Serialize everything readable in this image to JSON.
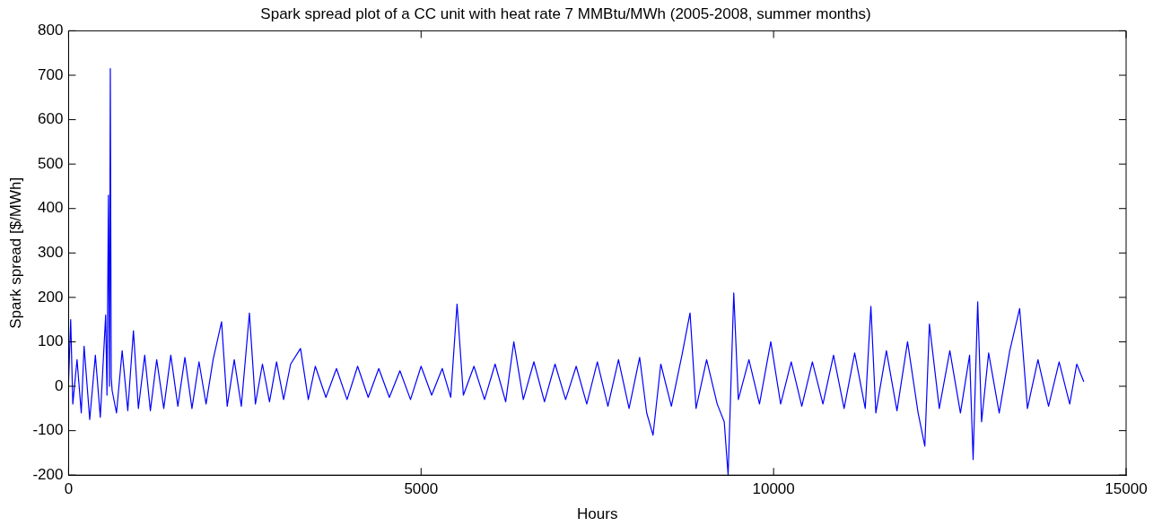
{
  "chart_data": {
    "type": "line",
    "title": "Spark spread plot of a CC unit with heat rate 7 MMBtu/MWh (2005-2008, summer months)",
    "xlabel": "Hours",
    "ylabel": "Spark spread [$/MWh]",
    "x": [
      0,
      30,
      60,
      120,
      180,
      220,
      300,
      380,
      450,
      526,
      545,
      565,
      580,
      592,
      605,
      618,
      680,
      760,
      840,
      920,
      990,
      1080,
      1160,
      1250,
      1350,
      1450,
      1550,
      1650,
      1750,
      1850,
      1950,
      2050,
      2170,
      2250,
      2350,
      2450,
      2565,
      2650,
      2750,
      2850,
      2950,
      3050,
      3150,
      3290,
      3400,
      3500,
      3650,
      3800,
      3950,
      4100,
      4250,
      4400,
      4550,
      4700,
      4850,
      5000,
      5150,
      5300,
      5420,
      5510,
      5600,
      5750,
      5900,
      6050,
      6200,
      6315,
      6450,
      6600,
      6750,
      6900,
      7050,
      7200,
      7350,
      7500,
      7650,
      7800,
      7950,
      8100,
      8200,
      8290,
      8400,
      8550,
      8700,
      8815,
      8900,
      9050,
      9200,
      9300,
      9355,
      9435,
      9500,
      9650,
      9800,
      9960,
      10100,
      10250,
      10400,
      10550,
      10700,
      10850,
      11000,
      11150,
      11300,
      11380,
      11450,
      11600,
      11750,
      11900,
      12050,
      12145,
      12210,
      12350,
      12500,
      12650,
      12780,
      12830,
      12895,
      12950,
      13050,
      13200,
      13350,
      13490,
      13600,
      13750,
      13900,
      14050,
      14200,
      14300,
      14400
    ],
    "series": [
      {
        "color": "#0000ff",
        "values": [
          10,
          150,
          -40,
          60,
          -60,
          90,
          -75,
          70,
          -70,
          160,
          -20,
          430,
          0,
          715,
          20,
          -10,
          -60,
          80,
          -55,
          125,
          -50,
          70,
          -55,
          60,
          -50,
          70,
          -45,
          65,
          -50,
          55,
          -40,
          60,
          145,
          -45,
          60,
          -45,
          165,
          -40,
          50,
          -35,
          55,
          -30,
          50,
          85,
          -30,
          45,
          -25,
          40,
          -30,
          45,
          -25,
          40,
          -25,
          35,
          -30,
          45,
          -20,
          40,
          -25,
          185,
          -20,
          45,
          -30,
          50,
          -35,
          100,
          -30,
          55,
          -35,
          50,
          -30,
          45,
          -40,
          55,
          -45,
          60,
          -50,
          65,
          -60,
          -110,
          50,
          -45,
          70,
          165,
          -50,
          60,
          -40,
          -80,
          -200,
          210,
          -30,
          60,
          -40,
          100,
          -40,
          55,
          -45,
          55,
          -40,
          70,
          -50,
          75,
          -50,
          180,
          -60,
          80,
          -55,
          100,
          -60,
          -135,
          140,
          -50,
          80,
          -60,
          70,
          -165,
          190,
          -80,
          75,
          -60,
          80,
          175,
          -50,
          60,
          -45,
          55,
          -40,
          50,
          10
        ]
      }
    ],
    "xlim": [
      0,
      15000
    ],
    "xticks": [
      0,
      5000,
      10000,
      15000
    ],
    "ylim": [
      -200,
      800
    ],
    "yticks": [
      -200,
      -100,
      0,
      100,
      200,
      300,
      400,
      500,
      600,
      700,
      800
    ],
    "grid": false,
    "legend": false,
    "marker": "none",
    "line_style": "solid"
  }
}
